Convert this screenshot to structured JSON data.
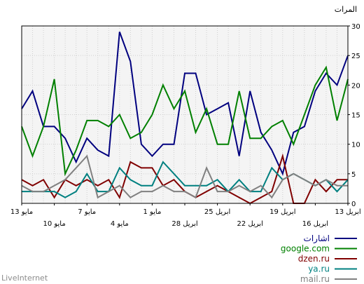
{
  "credit": "LiveInternet",
  "chart_data": {
    "type": "line",
    "ylabel": "المرات",
    "ylim": [
      0,
      30
    ],
    "yticks": [
      0,
      5,
      10,
      15,
      20,
      25,
      30
    ],
    "grid": true,
    "x_direction": "right-to-left",
    "x": [
      "13 ابريل",
      "14 ابريل",
      "15 ابريل",
      "16 ابريل",
      "17 ابريل",
      "18 ابريل",
      "19 ابريل",
      "20 ابريل",
      "21 ابريل",
      "22 ابريل",
      "23 ابريل",
      "24 ابريل",
      "25 ابريل",
      "26 ابريل",
      "27 ابريل",
      "28 ابريل",
      "29 ابريل",
      "30 ابريل",
      "1 مايو",
      "2 مايو",
      "3 مايو",
      "4 مايو",
      "5 مايو",
      "6 مايو",
      "7 مايو",
      "8 مايو",
      "9 مايو",
      "10 مايو",
      "11 مايو",
      "12 مايو",
      "13 مايو"
    ],
    "xtick_labels": [
      {
        "index": 0,
        "label": "13 ابريل",
        "row": 1
      },
      {
        "index": 3,
        "label": "16 ابريل",
        "row": 2
      },
      {
        "index": 6,
        "label": "19 ابريل",
        "row": 1
      },
      {
        "index": 9,
        "label": "22 ابريل",
        "row": 2
      },
      {
        "index": 12,
        "label": "25 ابريل",
        "row": 1
      },
      {
        "index": 15,
        "label": "28 ابريل",
        "row": 2
      },
      {
        "index": 18,
        "label": "1 مايو",
        "row": 1
      },
      {
        "index": 21,
        "label": "4 مايو",
        "row": 2
      },
      {
        "index": 24,
        "label": "7 مايو",
        "row": 1
      },
      {
        "index": 27,
        "label": "10 مايو",
        "row": 2
      },
      {
        "index": 30,
        "label": "13 مايو",
        "row": 1
      }
    ],
    "legend_position": "bottom-right",
    "series": [
      {
        "name": "اشارات",
        "color": "#00007f",
        "values": [
          25,
          20,
          22,
          19,
          13,
          12,
          5,
          9,
          12,
          19,
          8,
          17,
          16,
          15,
          22,
          22,
          10,
          10,
          8,
          10,
          24,
          29,
          8,
          9,
          11,
          7,
          11,
          13,
          13,
          19,
          16
        ]
      },
      {
        "name": "google.com",
        "color": "#008000",
        "values": [
          21,
          14,
          23,
          20,
          15,
          10,
          14,
          13,
          11,
          11,
          19,
          10,
          10,
          16,
          12,
          19,
          16,
          20,
          15,
          12,
          11,
          15,
          13,
          14,
          14,
          9,
          5,
          21,
          13,
          8,
          13
        ]
      },
      {
        "name": "dzen.ru",
        "color": "#800000",
        "values": [
          4,
          4,
          2,
          4,
          0,
          0,
          8,
          2,
          1,
          0,
          1,
          2,
          3,
          2,
          1,
          2,
          4,
          3,
          6,
          6,
          7,
          1,
          4,
          3,
          4,
          3,
          4,
          1,
          4,
          3,
          4
        ]
      },
      {
        "name": "ya.ru",
        "color": "#008080",
        "values": [
          4,
          2,
          4,
          3,
          4,
          5,
          4,
          6,
          2,
          2,
          4,
          2,
          4,
          3,
          3,
          3,
          5,
          7,
          3,
          3,
          4,
          6,
          2,
          2,
          5,
          2,
          1,
          2,
          2,
          2,
          2
        ]
      },
      {
        "name": "mail.ru",
        "color": "#808080",
        "values": [
          3,
          3,
          4,
          3,
          4,
          5,
          4,
          1,
          3,
          2,
          3,
          2,
          2,
          6,
          1,
          2,
          2,
          3,
          2,
          2,
          1,
          3,
          2,
          1,
          8,
          6,
          4,
          3,
          2,
          2,
          3
        ]
      }
    ]
  }
}
